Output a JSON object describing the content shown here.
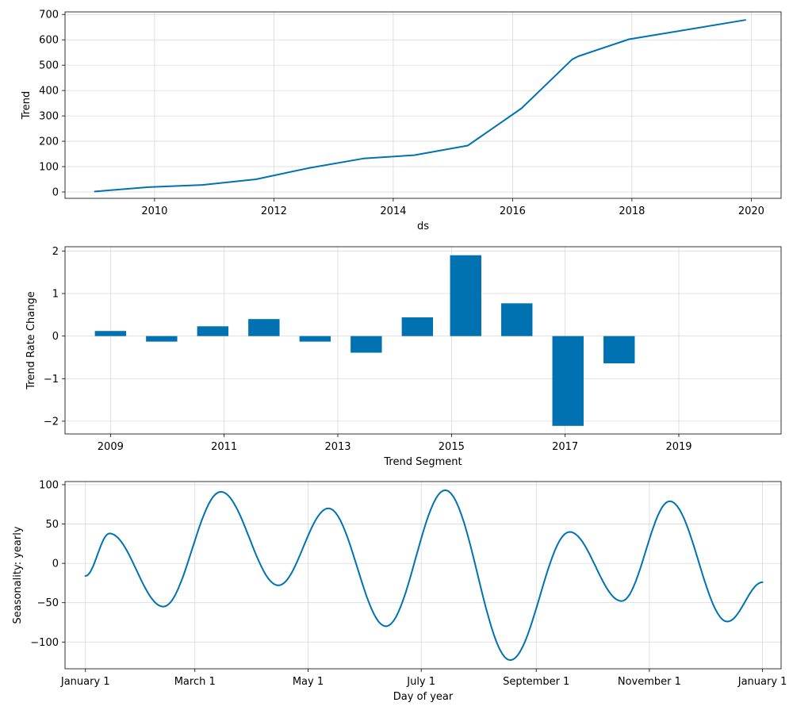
{
  "colors": {
    "series": "#0072B2",
    "grid": "#d9d9d9",
    "axis": "#000000"
  },
  "chart_data": [
    {
      "type": "line",
      "xlabel": "ds",
      "ylabel": "Trend",
      "xlim": [
        2008.5,
        2020.5
      ],
      "ylim": [
        -25,
        710
      ],
      "grid": true,
      "x_ticks": [
        2010,
        2012,
        2014,
        2016,
        2018,
        2020
      ],
      "x_tick_labels": [
        "2010",
        "2012",
        "2014",
        "2016",
        "2018",
        "2020"
      ],
      "y_ticks": [
        0,
        100,
        200,
        300,
        400,
        500,
        600,
        700
      ],
      "y_tick_labels": [
        "0",
        "100",
        "200",
        "300",
        "400",
        "500",
        "600",
        "700"
      ],
      "series": [
        {
          "x": [
            2009.0,
            2009.9,
            2010.8,
            2011.7,
            2012.6,
            2013.5,
            2014.35,
            2015.25,
            2016.15,
            2017.0,
            2017.1,
            2017.95,
            2019.9
          ],
          "values": [
            2,
            19,
            28,
            50,
            95,
            132,
            145,
            183,
            330,
            523,
            535,
            602,
            678
          ]
        }
      ]
    },
    {
      "type": "bar",
      "xlabel": "Trend Segment",
      "ylabel": "Trend Rate Change",
      "xlim": [
        2008.2,
        2020.8
      ],
      "ylim": [
        -2.3,
        2.1
      ],
      "grid": true,
      "bar_width": 0.55,
      "x_ticks": [
        2009,
        2011,
        2013,
        2015,
        2017,
        2019
      ],
      "x_tick_labels": [
        "2009",
        "2011",
        "2013",
        "2015",
        "2017",
        "2019"
      ],
      "y_ticks": [
        -2,
        -1,
        0,
        1,
        2
      ],
      "y_tick_labels": [
        "−2",
        "−1",
        "0",
        "1",
        "2"
      ],
      "series": [
        {
          "x": [
            2009.0,
            2009.9,
            2010.8,
            2011.7,
            2012.6,
            2013.5,
            2014.4,
            2015.25,
            2016.15,
            2017.05,
            2017.95
          ],
          "values": [
            0.12,
            -0.13,
            0.23,
            0.4,
            -0.13,
            -0.39,
            0.44,
            1.9,
            0.77,
            -2.11,
            -0.64
          ]
        }
      ]
    },
    {
      "type": "line",
      "xlabel": "Day of year",
      "ylabel": "Seasonality: yearly",
      "xlim": [
        -11,
        375
      ],
      "ylim": [
        -134,
        104
      ],
      "grid": true,
      "x_ticks": [
        0,
        59,
        120,
        181,
        243,
        304,
        365
      ],
      "x_tick_labels": [
        "January 1",
        "March 1",
        "May 1",
        "July 1",
        "September 1",
        "November 1",
        "January 1"
      ],
      "y_ticks": [
        -100,
        -50,
        0,
        50,
        100
      ],
      "y_tick_labels": [
        "−100",
        "−50",
        "0",
        "50",
        "100"
      ],
      "series": [
        {
          "x": [
            0,
            13,
            42,
            73,
            104,
            131,
            162,
            194,
            229,
            261,
            289,
            315,
            346,
            365
          ],
          "values": [
            -16,
            38,
            -55,
            91,
            -28,
            70,
            -80,
            93,
            -123,
            40,
            -48,
            79,
            -74,
            -24
          ]
        }
      ]
    }
  ]
}
